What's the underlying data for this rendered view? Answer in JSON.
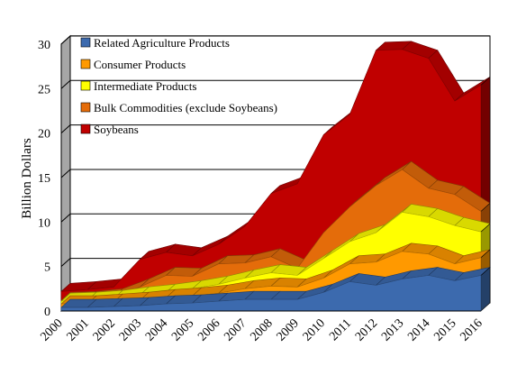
{
  "chart_data": {
    "type": "area",
    "stacked": true,
    "three_d": true,
    "title": "",
    "xlabel": "",
    "ylabel": "Billion Dollars",
    "ylim": [
      0,
      30
    ],
    "yticks": [
      0,
      5,
      10,
      15,
      20,
      25,
      30
    ],
    "grid": true,
    "legend_position": "top-left",
    "categories": [
      "2000",
      "2001",
      "2002",
      "2003",
      "2004",
      "2005",
      "2006",
      "2007",
      "2008",
      "2009",
      "2010",
      "2011",
      "2012",
      "2013",
      "2014",
      "2015",
      "2016"
    ],
    "series": [
      {
        "name": "Related Agriculture Products",
        "color": "#3C6AAE",
        "values": [
          0.4,
          0.4,
          0.5,
          0.6,
          0.8,
          0.9,
          1.1,
          1.3,
          1.3,
          1.3,
          2.1,
          3.3,
          2.9,
          3.6,
          4.0,
          3.4,
          4.0
        ]
      },
      {
        "name": "Consumer Products",
        "color": "#FF9900",
        "values": [
          0.4,
          0.4,
          0.5,
          0.6,
          0.7,
          0.8,
          0.9,
          1.2,
          1.5,
          1.4,
          1.6,
          2.0,
          2.6,
          3.1,
          2.4,
          1.9,
          2.0
        ]
      },
      {
        "name": "Intermediate Products",
        "color": "#FFFF00",
        "values": [
          0.3,
          0.4,
          0.4,
          0.6,
          0.6,
          0.8,
          1.0,
          1.2,
          1.5,
          1.3,
          2.2,
          2.5,
          3.3,
          4.4,
          4.2,
          4.3,
          2.9
        ]
      },
      {
        "name": "Bulk Commodities (exclude Soybeans)",
        "color": "#E46C0A",
        "values": [
          0.1,
          0.1,
          0.2,
          0.9,
          1.9,
          1.4,
          2.3,
          1.7,
          1.8,
          0.8,
          2.9,
          3.9,
          5.3,
          4.8,
          3.2,
          3.5,
          2.3
        ]
      },
      {
        "name": "Soybeans",
        "color": "#C00000",
        "values": [
          1.0,
          1.1,
          1.1,
          3.1,
          2.6,
          2.3,
          2.2,
          4.1,
          7.1,
          9.5,
          11.0,
          10.4,
          15.2,
          13.5,
          14.6,
          10.5,
          14.2
        ]
      }
    ]
  }
}
